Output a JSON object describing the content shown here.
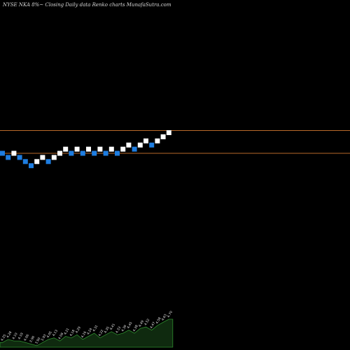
{
  "chart_data": {
    "type": "renko",
    "title": "NYSE NKA 8%~  Closing Daily data  Renko  charts MunafaSutra.com",
    "colors": {
      "background": "#000000",
      "up_brick": "#ffffff",
      "down_brick": "#1e7de0",
      "reference_line": "#b86a2a",
      "volume_fill": "#0f2a0f",
      "volume_edge": "#2e8b2e"
    },
    "bricks": [
      {
        "i": 0,
        "level": 0,
        "dir": "down"
      },
      {
        "i": 1,
        "level": -1,
        "dir": "down"
      },
      {
        "i": 2,
        "level": 0,
        "dir": "up"
      },
      {
        "i": 3,
        "level": -1,
        "dir": "down"
      },
      {
        "i": 4,
        "level": -2,
        "dir": "down"
      },
      {
        "i": 5,
        "level": -3,
        "dir": "down"
      },
      {
        "i": 6,
        "level": -2,
        "dir": "up"
      },
      {
        "i": 7,
        "level": -1,
        "dir": "up"
      },
      {
        "i": 8,
        "level": -2,
        "dir": "down"
      },
      {
        "i": 9,
        "level": -1,
        "dir": "up"
      },
      {
        "i": 10,
        "level": 0,
        "dir": "up"
      },
      {
        "i": 11,
        "level": 1,
        "dir": "up"
      },
      {
        "i": 12,
        "level": 0,
        "dir": "down"
      },
      {
        "i": 13,
        "level": 1,
        "dir": "up"
      },
      {
        "i": 14,
        "level": 0,
        "dir": "down"
      },
      {
        "i": 15,
        "level": 1,
        "dir": "up"
      },
      {
        "i": 16,
        "level": 0,
        "dir": "down"
      },
      {
        "i": 17,
        "level": 1,
        "dir": "up"
      },
      {
        "i": 18,
        "level": 0,
        "dir": "down"
      },
      {
        "i": 19,
        "level": 1,
        "dir": "up"
      },
      {
        "i": 20,
        "level": 0,
        "dir": "down"
      },
      {
        "i": 21,
        "level": 1,
        "dir": "up"
      },
      {
        "i": 22,
        "level": 2,
        "dir": "up"
      },
      {
        "i": 23,
        "level": 1,
        "dir": "down"
      },
      {
        "i": 24,
        "level": 2,
        "dir": "up"
      },
      {
        "i": 25,
        "level": 3,
        "dir": "up"
      },
      {
        "i": 26,
        "level": 2,
        "dir": "down"
      },
      {
        "i": 27,
        "level": 3,
        "dir": "up"
      },
      {
        "i": 28,
        "level": 4,
        "dir": "up"
      },
      {
        "i": 29,
        "level": 5,
        "dir": "up"
      }
    ],
    "reference_lines": [
      5.5,
      0
    ],
    "volume_labels": [
      "4.25",
      "4.28",
      "4.10",
      "4.19",
      "4.06",
      "3.96",
      "3.90",
      "3.93",
      "4.05",
      "4.13",
      "4.08",
      "4.21",
      "4.18",
      "4.29",
      "4.16",
      "4.24",
      "4.31",
      "4.22",
      "4.35",
      "4.41",
      "4.33",
      "4.39",
      "4.45",
      "4.38",
      "4.49",
      "4.52",
      "4.47",
      "4.58",
      "4.63",
      "4.70"
    ],
    "volume_values": [
      3,
      5,
      4,
      4,
      3,
      2,
      1,
      3,
      5,
      6,
      4,
      7,
      6,
      8,
      5,
      7,
      9,
      6,
      8,
      10,
      8,
      9,
      11,
      9,
      12,
      13,
      11,
      14,
      16,
      18
    ]
  }
}
